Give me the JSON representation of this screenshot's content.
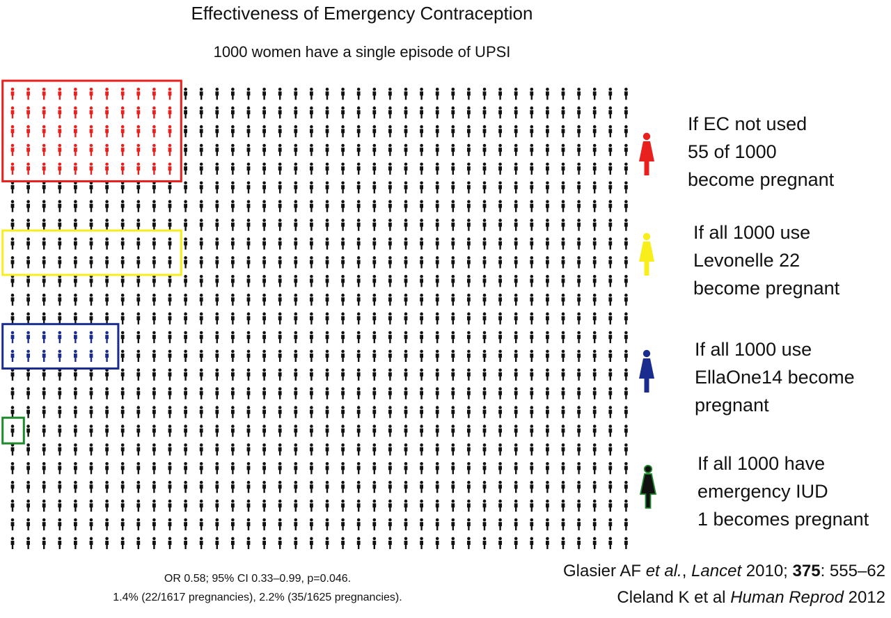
{
  "title": "Effectiveness of Emergency Contraception",
  "subtitle": "1000 women have a single episode of UPSI",
  "colors": {
    "figure": "#111111",
    "no_ec": "#e8201e",
    "levonelle": "#f7ee1c",
    "ellaone": "#1a2d8e",
    "iud": "#1f8a2b"
  },
  "chart_data": {
    "type": "pictogram",
    "total": 1000,
    "grid_columns": 40,
    "grid_rows": 25,
    "groups": [
      {
        "key": "no_ec",
        "count": 55,
        "lines": [
          "If EC not used",
          "55 of 1000",
          "become pregnant"
        ]
      },
      {
        "key": "levonelle",
        "count": 22,
        "lines": [
          "If all 1000 use",
          "Levonelle 22",
          "become pregnant"
        ]
      },
      {
        "key": "ellaone",
        "count": 14,
        "lines": [
          "If all 1000 use",
          "EllaOne14 become",
          "pregnant"
        ]
      },
      {
        "key": "iud",
        "count": 1,
        "lines": [
          "If all 1000 have",
          "emergency IUD",
          "1 becomes pregnant"
        ]
      }
    ]
  },
  "stats": [
    "OR 0.58; 95% CI 0.33–0.99, p=0.046.",
    "1.4% (22/1617 pregnancies), 2.2% (35/1625 pregnancies)."
  ],
  "references": {
    "ref1": {
      "authors": "Glasier AF ",
      "etal": "et al.",
      "sep": ", ",
      "journal": "Lancet",
      "year": " 2010; ",
      "volume": "375",
      "pages": ": 555–62"
    },
    "ref2": {
      "authors": "Cleland K et al ",
      "journal": "Human Reprod",
      "year": " 2012"
    }
  }
}
